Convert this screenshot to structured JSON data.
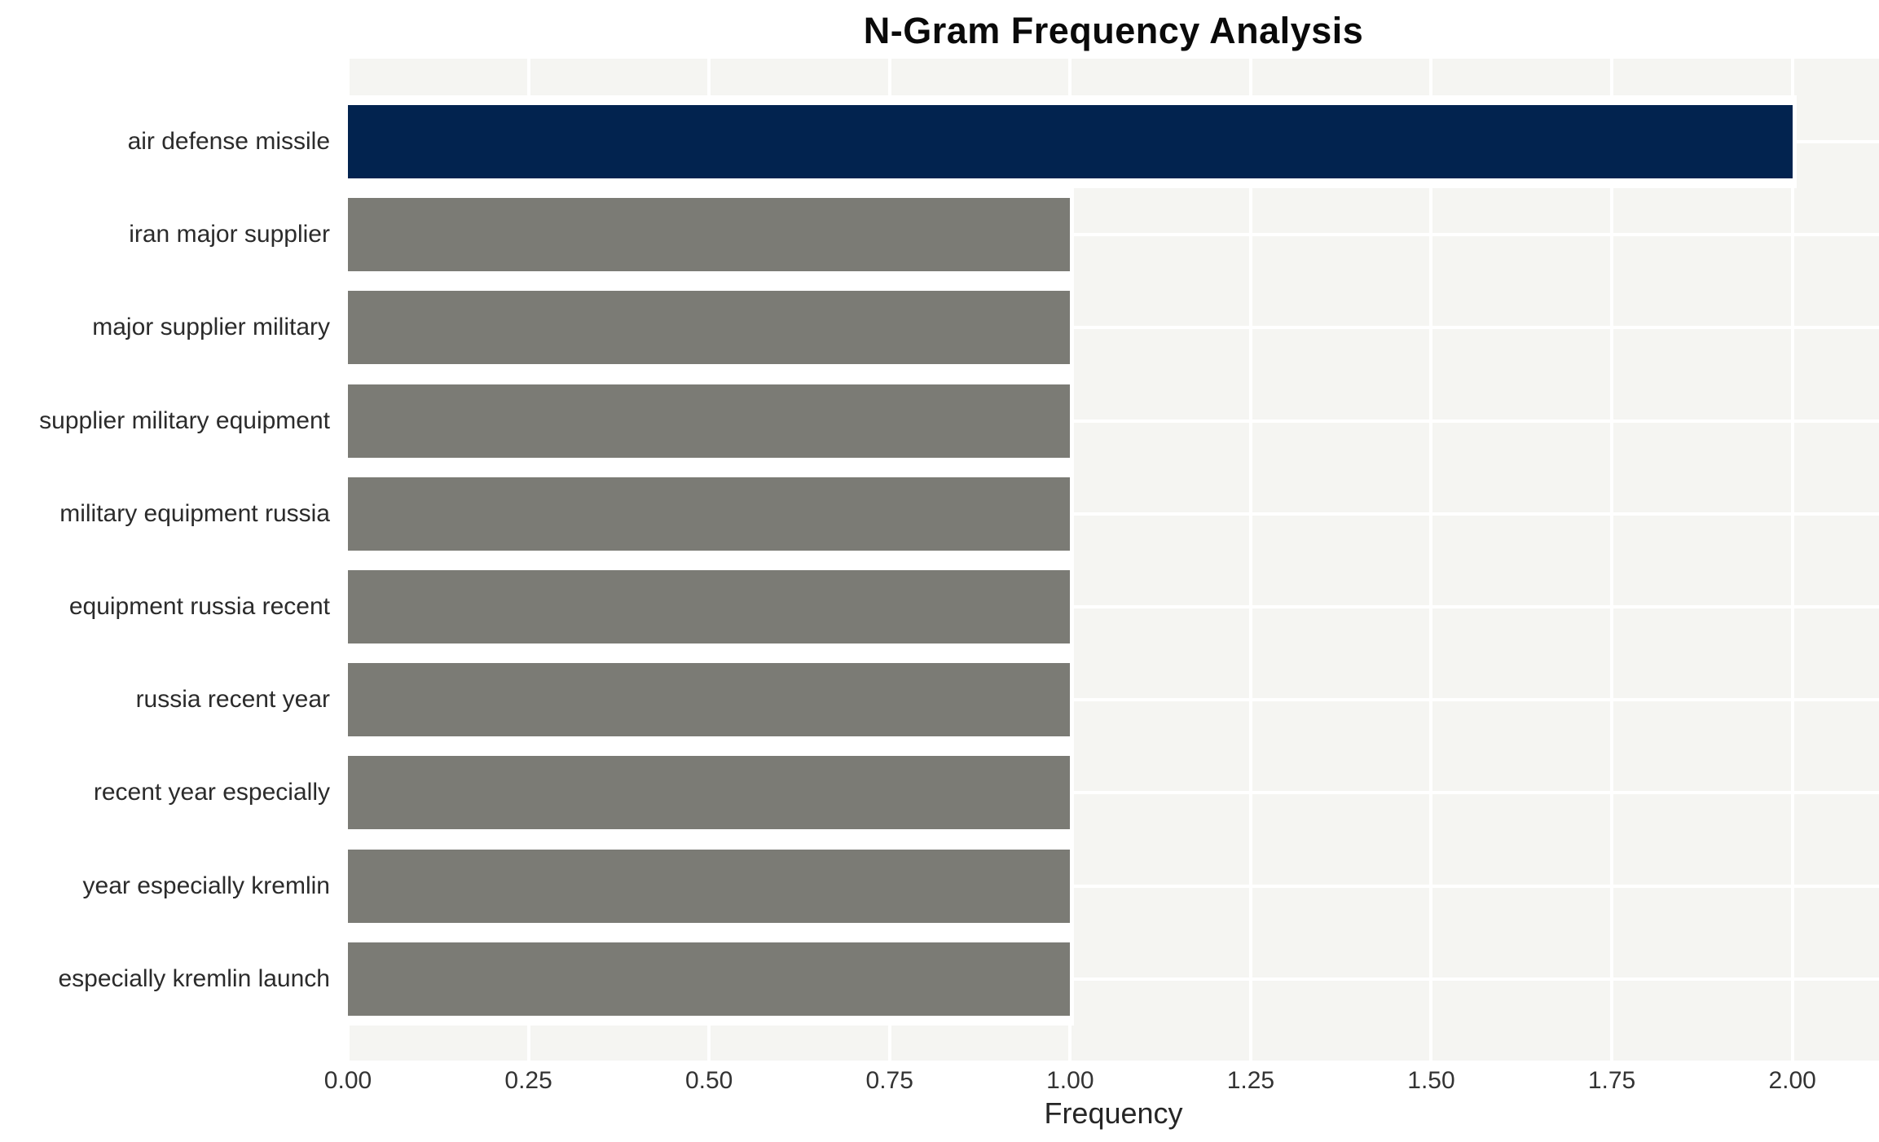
{
  "chart_data": {
    "type": "bar",
    "orientation": "horizontal",
    "title": "N-Gram Frequency Analysis",
    "xlabel": "Frequency",
    "ylabel": "",
    "categories": [
      "air defense missile",
      "iran major supplier",
      "major supplier military",
      "supplier military equipment",
      "military equipment russia",
      "equipment russia recent",
      "russia recent year",
      "recent year especially",
      "year especially kremlin",
      "especially kremlin launch"
    ],
    "values": [
      2,
      1,
      1,
      1,
      1,
      1,
      1,
      1,
      1,
      1
    ],
    "bar_colors": [
      "#02234f",
      "#7b7b75",
      "#7b7b75",
      "#7b7b75",
      "#7b7b75",
      "#7b7b75",
      "#7b7b75",
      "#7b7b75",
      "#7b7b75",
      "#7b7b75"
    ],
    "x_ticks": [
      "0.00",
      "0.25",
      "0.50",
      "0.75",
      "1.00",
      "1.25",
      "1.50",
      "1.75",
      "2.00"
    ],
    "xlim": [
      0,
      2.12
    ],
    "grid": true,
    "legend": false,
    "colors": {
      "highlight_bar": "#02234f",
      "default_bar": "#7b7b75",
      "plot_background": "#f5f5f2",
      "gridline": "#ffffff",
      "bar_edge": "#ffffff",
      "figure_background": "#ffffff",
      "title_color": "#0a0a0a",
      "tick_label_color": "#333333",
      "category_label_color": "#2b2b2b"
    }
  }
}
